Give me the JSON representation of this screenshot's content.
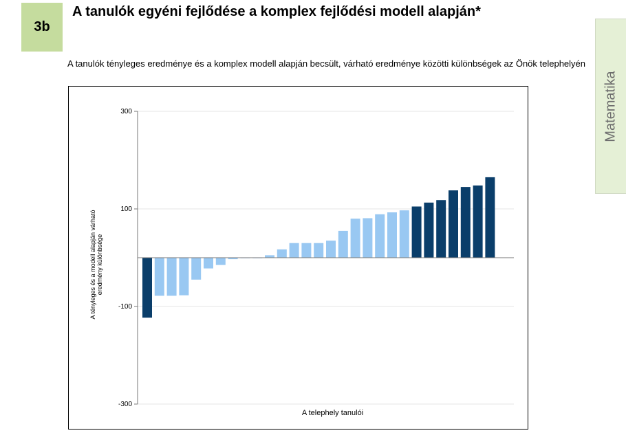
{
  "header": {
    "badge": "3b",
    "title": "A tanulók egyéni fejlődése a komplex fejlődési modell alapján*"
  },
  "subtitle": "A tanulók tényleges eredménye és a komplex modell alapján becsült, várható eredménye közötti különbségek az Önök telephelyén",
  "side_tab": "Matematika",
  "colors": {
    "light_bar": "#99c8f2",
    "dark_bar": "#0a3e6a",
    "badge": "#c5dc9e",
    "side_tab": "#e5f0d6"
  },
  "chart_data": {
    "type": "bar",
    "xlabel": "A telephely tanulói",
    "ylabel_lines": [
      "A tényleges és a modell alapján várható",
      "eredmény különbsége"
    ],
    "ylim": [
      -300,
      300
    ],
    "yticks": [
      300,
      100,
      -100,
      -300
    ],
    "yticklabels": [
      "300",
      "100",
      "-100",
      "-300"
    ],
    "grid": true,
    "values": [
      -123,
      -78,
      -78,
      -77,
      -45,
      -22,
      -15,
      -3,
      -1,
      -1,
      5,
      17,
      30,
      30,
      30,
      35,
      55,
      80,
      81,
      89,
      93,
      97,
      105,
      113,
      118,
      138,
      145,
      148,
      165
    ],
    "highlight": [
      "dark",
      "light",
      "light",
      "light",
      "light",
      "light",
      "light",
      "light",
      "light",
      "light",
      "light",
      "light",
      "light",
      "light",
      "light",
      "light",
      "light",
      "light",
      "light",
      "light",
      "light",
      "light",
      "dark",
      "dark",
      "dark",
      "dark",
      "dark",
      "dark",
      "dark"
    ]
  }
}
